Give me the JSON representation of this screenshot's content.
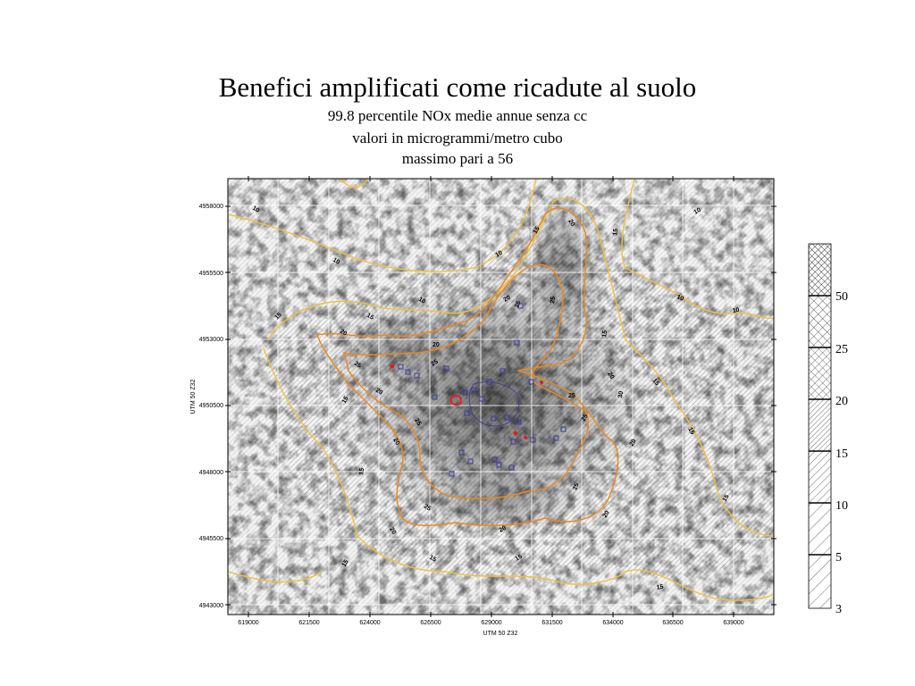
{
  "slide": {
    "title": "Benefici amplificati come ricadute al suolo",
    "subtitle_lines": [
      "99.8 percentile NOx medie annue senza cc",
      "valori in microgrammi/metro cubo",
      "massimo pari a 56"
    ]
  },
  "map": {
    "x_axis_label": "UTM 50 Z32",
    "y_axis_label": "UTM 50 Z32",
    "x_ticks": [
      "619000",
      "621500",
      "624000",
      "626500",
      "629000",
      "631500",
      "634000",
      "636500",
      "639000"
    ],
    "y_ticks": [
      "4958000",
      "4955500",
      "4953000",
      "4950500",
      "4948000",
      "4945500",
      "4943000"
    ],
    "contour_labels": [
      "10",
      "15",
      "20",
      "25",
      "30"
    ],
    "colors": {
      "contour_outer": "#f0c040",
      "contour_inner": "#e88a20",
      "markers_blue": "#3a3aa0",
      "markers_red": "#e02020"
    }
  },
  "legend": {
    "levels": [
      "50",
      "25",
      "20",
      "15",
      "10",
      "5",
      "3"
    ]
  }
}
